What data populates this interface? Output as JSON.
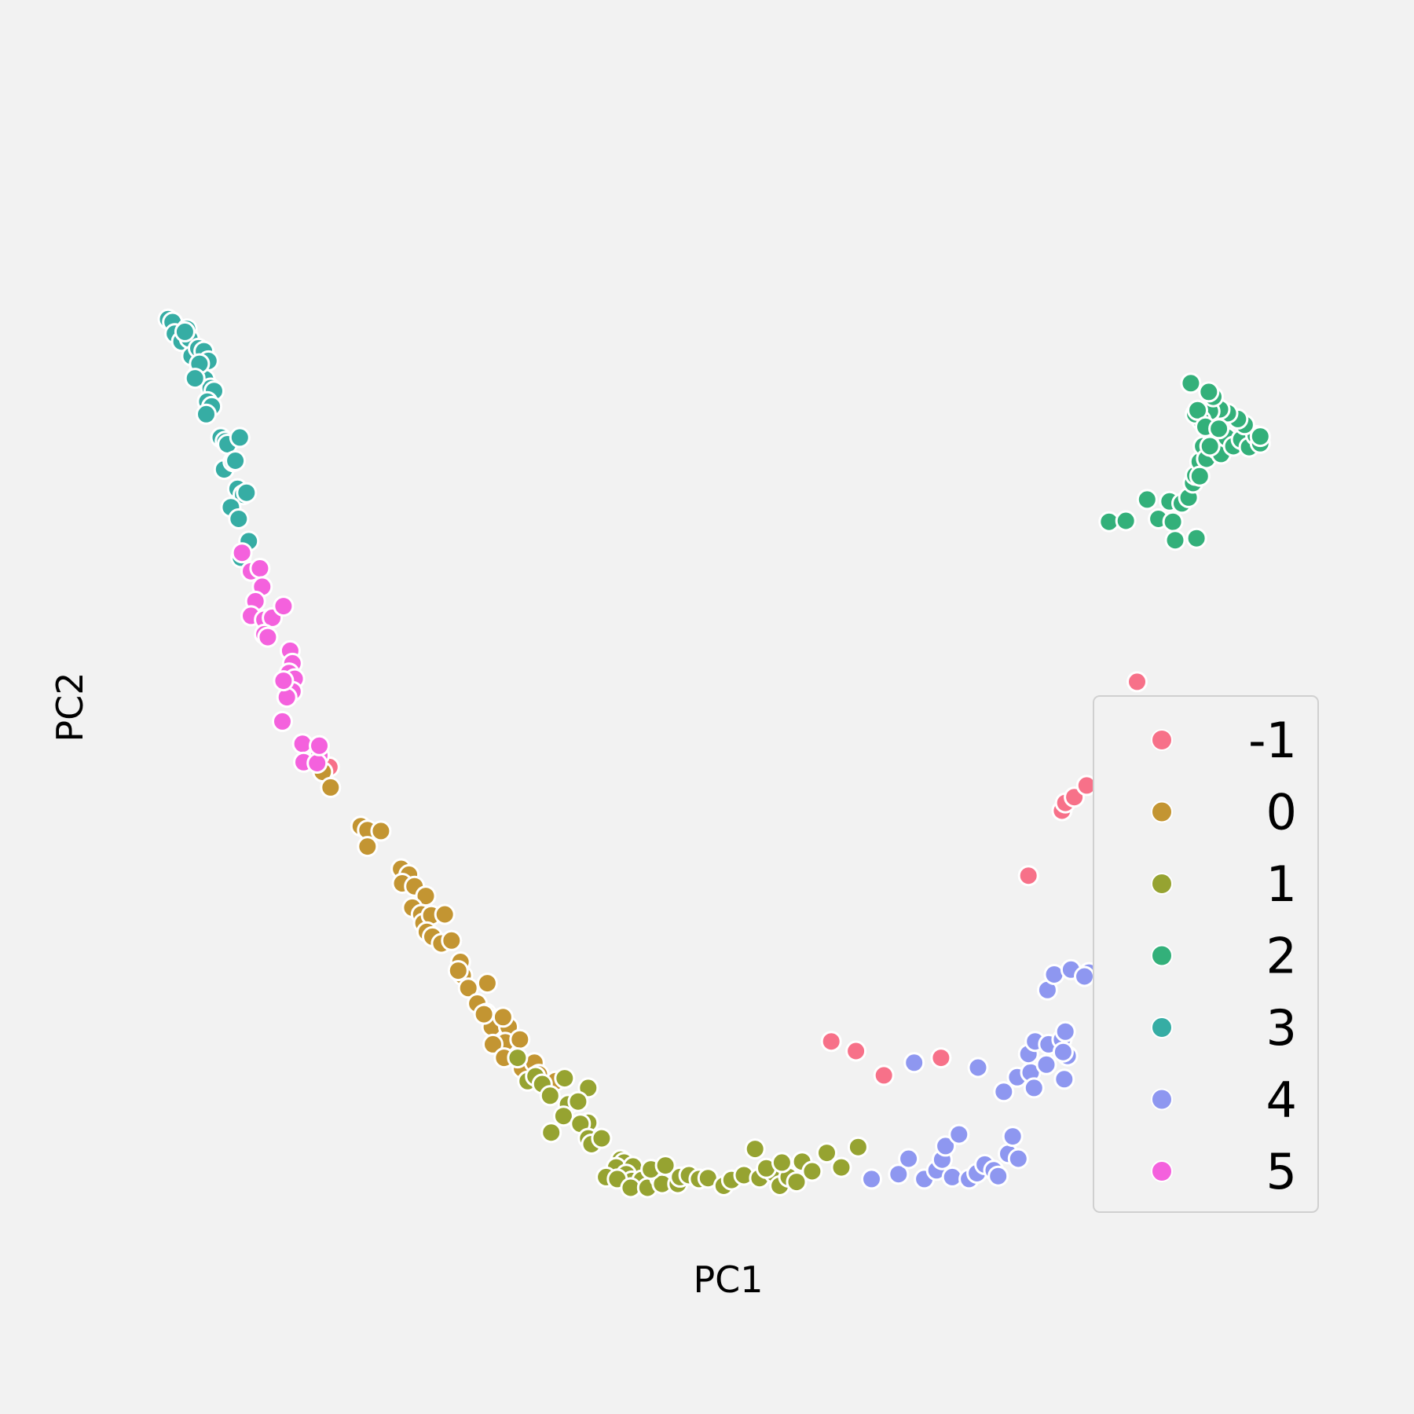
{
  "chart_data": {
    "type": "scatter",
    "title": "",
    "xlabel": "PC1",
    "ylabel": "PC2",
    "xlim": [
      0,
      100
    ],
    "ylim": [
      0,
      100
    ],
    "grid": false,
    "legend_position": "lower-right",
    "series": [
      {
        "name": "-1",
        "color": "#f77189",
        "points": [
          [
            14.4,
            43.4
          ],
          [
            59.2,
            15.1
          ],
          [
            61.4,
            14.1
          ],
          [
            63.9,
            11.6
          ],
          [
            69.0,
            13.4
          ],
          [
            76.8,
            32.2
          ],
          [
            79.8,
            38.9
          ],
          [
            80.1,
            39.7
          ],
          [
            80.9,
            40.3
          ],
          [
            82.0,
            41.5
          ],
          [
            83.5,
            43.7
          ],
          [
            83.7,
            48.2
          ],
          [
            84.8,
            49.0
          ],
          [
            86.5,
            52.2
          ]
        ]
      },
      {
        "name": "0",
        "color": "#c39532",
        "points": [
          [
            13.8,
            42.9
          ],
          [
            14.5,
            41.3
          ],
          [
            17.2,
            37.3
          ],
          [
            17.8,
            36.9
          ],
          [
            19.0,
            36.8
          ],
          [
            17.8,
            35.2
          ],
          [
            20.8,
            32.9
          ],
          [
            21.5,
            32.3
          ],
          [
            20.9,
            31.4
          ],
          [
            22.0,
            31.1
          ],
          [
            23.0,
            30.1
          ],
          [
            21.8,
            28.9
          ],
          [
            22.6,
            28.2
          ],
          [
            22.8,
            27.3
          ],
          [
            23.5,
            28.1
          ],
          [
            24.7,
            28.2
          ],
          [
            23.1,
            26.4
          ],
          [
            23.6,
            25.9
          ],
          [
            24.4,
            25.2
          ],
          [
            25.3,
            25.5
          ],
          [
            26.1,
            23.3
          ],
          [
            26.3,
            21.9
          ],
          [
            26.8,
            20.6
          ],
          [
            28.5,
            21.1
          ],
          [
            27.6,
            19.0
          ],
          [
            28.4,
            18.0
          ],
          [
            29.4,
            17.4
          ],
          [
            28.9,
            16.6
          ],
          [
            30.4,
            16.6
          ],
          [
            30.1,
            15.0
          ],
          [
            29.0,
            14.8
          ],
          [
            31.4,
            15.3
          ],
          [
            31.6,
            12.3
          ],
          [
            32.7,
            12.9
          ],
          [
            33.1,
            11.7
          ],
          [
            34.6,
            11.0
          ],
          [
            30.0,
            13.4
          ],
          [
            25.9,
            22.4
          ],
          [
            28.2,
            17.9
          ],
          [
            29.9,
            17.6
          ]
        ]
      },
      {
        "name": "1",
        "color": "#96a331",
        "points": [
          [
            31.2,
            13.4
          ],
          [
            32.1,
            11.0
          ],
          [
            32.8,
            11.5
          ],
          [
            33.4,
            10.7
          ],
          [
            35.4,
            11.3
          ],
          [
            37.5,
            10.3
          ],
          [
            34.1,
            9.5
          ],
          [
            35.7,
            8.6
          ],
          [
            36.6,
            8.9
          ],
          [
            37.5,
            6.7
          ],
          [
            35.3,
            7.4
          ],
          [
            36.8,
            6.6
          ],
          [
            34.2,
            5.7
          ],
          [
            37.5,
            5.1
          ],
          [
            37.8,
            4.5
          ],
          [
            38.7,
            5.1
          ],
          [
            40.4,
            2.9
          ],
          [
            40.7,
            2.6
          ],
          [
            40.0,
            2.1
          ],
          [
            41.5,
            2.2
          ],
          [
            40.9,
            1.4
          ],
          [
            39.1,
            1.1
          ],
          [
            41.4,
            0.7
          ],
          [
            40.1,
            0.9
          ],
          [
            42.3,
            0.8
          ],
          [
            41.3,
            0.0
          ],
          [
            42.8,
            0.0
          ],
          [
            43.9,
            1.0
          ],
          [
            44.1,
            0.4
          ],
          [
            45.5,
            0.4
          ],
          [
            43.1,
            1.9
          ],
          [
            44.4,
            2.3
          ],
          [
            45.7,
            1.1
          ],
          [
            46.5,
            1.3
          ],
          [
            47.4,
            0.9
          ],
          [
            48.2,
            1.0
          ],
          [
            49.6,
            0.2
          ],
          [
            50.3,
            0.8
          ],
          [
            51.4,
            1.3
          ],
          [
            52.8,
            1.0
          ],
          [
            54.1,
            1.5
          ],
          [
            54.6,
            0.2
          ],
          [
            55.4,
            1.1
          ],
          [
            56.6,
            2.7
          ],
          [
            57.5,
            1.7
          ],
          [
            58.8,
            3.6
          ],
          [
            60.1,
            2.1
          ],
          [
            61.6,
            4.2
          ],
          [
            52.4,
            4.0
          ],
          [
            53.4,
            2.0
          ],
          [
            54.8,
            2.6
          ],
          [
            56.1,
            0.6
          ]
        ]
      },
      {
        "name": "2",
        "color": "#33b07a",
        "points": [
          [
            84.0,
            68.7
          ],
          [
            85.5,
            68.8
          ],
          [
            87.4,
            71.0
          ],
          [
            88.4,
            69.0
          ],
          [
            89.4,
            70.8
          ],
          [
            89.7,
            68.7
          ],
          [
            90.5,
            70.6
          ],
          [
            91.1,
            71.2
          ],
          [
            91.5,
            72.7
          ],
          [
            91.7,
            73.5
          ],
          [
            92.1,
            74.9
          ],
          [
            92.4,
            76.5
          ],
          [
            92.7,
            75.2
          ],
          [
            93.3,
            77.4
          ],
          [
            93.6,
            76.2
          ],
          [
            94.0,
            75.7
          ],
          [
            94.5,
            77.4
          ],
          [
            95.1,
            76.5
          ],
          [
            95.8,
            77.2
          ],
          [
            96.5,
            76.4
          ],
          [
            97.1,
            77.6
          ],
          [
            97.5,
            76.8
          ],
          [
            96.1,
            78.7
          ],
          [
            95.5,
            79.3
          ],
          [
            94.6,
            79.9
          ],
          [
            93.9,
            80.3
          ],
          [
            93.0,
            80.1
          ],
          [
            92.2,
            79.2
          ],
          [
            91.7,
            79.8
          ],
          [
            93.3,
            81.6
          ],
          [
            92.9,
            82.1
          ],
          [
            91.3,
            83.0
          ],
          [
            91.9,
            80.2
          ],
          [
            92.6,
            78.5
          ],
          [
            93.8,
            78.3
          ],
          [
            97.5,
            77.5
          ],
          [
            92.1,
            73.4
          ],
          [
            89.9,
            66.8
          ],
          [
            91.8,
            67.0
          ],
          [
            93.0,
            76.5
          ]
        ]
      },
      {
        "name": "3",
        "color": "#36ada4",
        "points": [
          [
            0.0,
            89.6
          ],
          [
            0.4,
            89.3
          ],
          [
            0.6,
            88.1
          ],
          [
            1.2,
            87.3
          ],
          [
            1.7,
            88.6
          ],
          [
            1.9,
            87.6
          ],
          [
            2.1,
            85.8
          ],
          [
            2.7,
            86.6
          ],
          [
            3.2,
            86.3
          ],
          [
            2.8,
            84.9
          ],
          [
            3.6,
            85.3
          ],
          [
            2.6,
            83.8
          ],
          [
            3.3,
            83.4
          ],
          [
            3.8,
            82.5
          ],
          [
            4.1,
            82.2
          ],
          [
            3.5,
            81.1
          ],
          [
            3.9,
            80.6
          ],
          [
            3.4,
            79.8
          ],
          [
            4.7,
            77.4
          ],
          [
            5.1,
            77.0
          ],
          [
            5.3,
            76.7
          ],
          [
            6.4,
            77.4
          ],
          [
            5.0,
            74.1
          ],
          [
            5.8,
            74.9
          ],
          [
            6.2,
            72.1
          ],
          [
            6.7,
            71.5
          ],
          [
            5.6,
            70.2
          ],
          [
            6.3,
            69.0
          ],
          [
            7.2,
            66.7
          ],
          [
            6.5,
            65.0
          ],
          [
            1.5,
            88.3
          ],
          [
            2.8,
            85.0
          ],
          [
            6.0,
            75.0
          ],
          [
            2.4,
            83.5
          ],
          [
            7.0,
            71.7
          ]
        ]
      },
      {
        "name": "5",
        "color": "#f461dd",
        "points": [
          [
            6.6,
            65.5
          ],
          [
            7.4,
            63.6
          ],
          [
            8.2,
            63.9
          ],
          [
            8.4,
            62.0
          ],
          [
            7.8,
            60.5
          ],
          [
            7.4,
            59.0
          ],
          [
            8.6,
            58.6
          ],
          [
            9.3,
            58.8
          ],
          [
            10.3,
            60.0
          ],
          [
            8.6,
            57.1
          ],
          [
            8.9,
            56.8
          ],
          [
            10.9,
            55.4
          ],
          [
            11.1,
            54.1
          ],
          [
            10.8,
            53.1
          ],
          [
            11.3,
            52.5
          ],
          [
            11.1,
            51.2
          ],
          [
            10.6,
            50.6
          ],
          [
            10.3,
            52.3
          ],
          [
            10.2,
            48.1
          ],
          [
            12.0,
            45.8
          ],
          [
            13.5,
            44.6
          ],
          [
            12.1,
            43.9
          ],
          [
            13.3,
            43.8
          ],
          [
            13.5,
            45.6
          ]
        ]
      },
      {
        "name": "4",
        "color": "#8e97f0",
        "points": [
          [
            62.8,
            0.9
          ],
          [
            65.2,
            1.4
          ],
          [
            66.1,
            3.0
          ],
          [
            67.5,
            0.9
          ],
          [
            68.6,
            1.8
          ],
          [
            69.1,
            2.9
          ],
          [
            70.0,
            1.1
          ],
          [
            71.5,
            0.9
          ],
          [
            72.2,
            1.5
          ],
          [
            72.9,
            2.4
          ],
          [
            73.7,
            1.8
          ],
          [
            74.1,
            1.2
          ],
          [
            75.0,
            3.5
          ],
          [
            75.9,
            3.0
          ],
          [
            75.4,
            5.3
          ],
          [
            69.4,
            4.3
          ],
          [
            70.6,
            5.5
          ],
          [
            66.6,
            12.9
          ],
          [
            72.3,
            12.4
          ],
          [
            74.6,
            9.9
          ],
          [
            75.8,
            11.4
          ],
          [
            77.0,
            11.9
          ],
          [
            78.4,
            12.7
          ],
          [
            77.3,
            10.3
          ],
          [
            76.8,
            13.8
          ],
          [
            77.4,
            15.1
          ],
          [
            78.6,
            14.8
          ],
          [
            79.8,
            15.3
          ],
          [
            80.3,
            13.6
          ],
          [
            80.0,
            11.2
          ],
          [
            80.1,
            16.1
          ],
          [
            78.5,
            20.4
          ],
          [
            79.1,
            22.0
          ],
          [
            80.6,
            22.5
          ],
          [
            82.2,
            22.2
          ],
          [
            83.6,
            24.1
          ],
          [
            84.8,
            25.3
          ],
          [
            85.1,
            26.9
          ],
          [
            86.1,
            24.4
          ],
          [
            86.9,
            28.5
          ],
          [
            88.0,
            29.4
          ],
          [
            88.5,
            30.0
          ],
          [
            89.1,
            30.2
          ],
          [
            88.9,
            32.3
          ],
          [
            89.6,
            33.8
          ],
          [
            89.9,
            34.9
          ],
          [
            90.3,
            36.1
          ],
          [
            91.3,
            36.0
          ],
          [
            91.8,
            37.3
          ],
          [
            91.4,
            38.9
          ],
          [
            92.6,
            39.8
          ],
          [
            92.4,
            31.6
          ],
          [
            81.8,
            21.8
          ],
          [
            79.9,
            14.0
          ]
        ]
      }
    ],
    "legend": {
      "order": [
        "-1",
        "0",
        "1",
        "2",
        "3",
        "4",
        "5"
      ]
    }
  }
}
